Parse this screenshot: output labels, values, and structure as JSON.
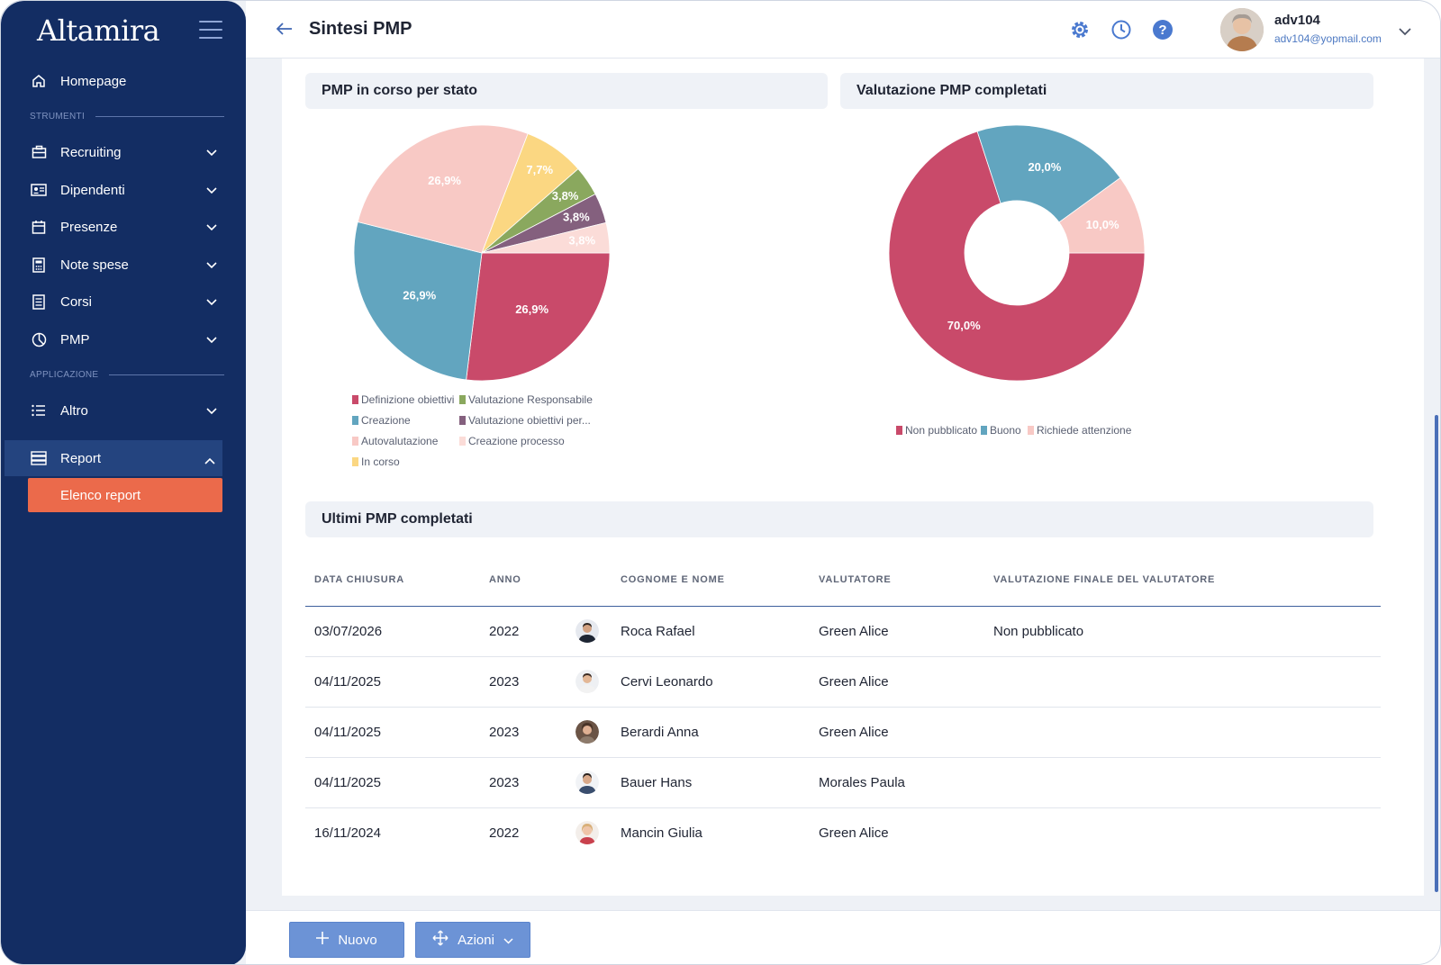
{
  "app": {
    "logo": "Altamira"
  },
  "header": {
    "title": "Sintesi PMP",
    "user_name": "adv104",
    "user_email": "adv104@yopmail.com"
  },
  "sidebar": {
    "homepage": "Homepage",
    "section_tools": "STRUMENTI",
    "section_app": "APPLICAZIONE",
    "items": [
      {
        "label": "Recruiting",
        "icon": "briefcase-icon"
      },
      {
        "label": "Dipendenti",
        "icon": "id-card-icon"
      },
      {
        "label": "Presenze",
        "icon": "calendar-icon"
      },
      {
        "label": "Note spese",
        "icon": "calculator-icon"
      },
      {
        "label": "Corsi",
        "icon": "document-icon"
      },
      {
        "label": "PMP",
        "icon": "pie-chart-icon"
      }
    ],
    "altro": "Altro",
    "report": "Report",
    "report_sub": "Elenco report"
  },
  "panels": {
    "pie_title": "PMP in corso per stato",
    "donut_title": "Valutazione PMP completati",
    "table_title": "Ultimi PMP completati"
  },
  "chart_data": [
    {
      "type": "pie",
      "title": "PMP in corso per stato",
      "labels": [
        "Definizione obiettivi",
        "Creazione",
        "Autovalutazione",
        "In corso",
        "Valutazione Responsabile",
        "Valutazione obiettivi per...",
        "Creazione processo"
      ],
      "values": [
        26.9,
        26.9,
        26.9,
        7.7,
        3.8,
        3.8,
        3.8
      ],
      "value_labels": [
        "26,9%",
        "26,9%",
        "26,9%",
        "7,7%",
        "3,8%",
        "3,8%",
        "3,8%"
      ],
      "colors": [
        "#c94a6a",
        "#62a5bf",
        "#f8c9c5",
        "#fbd782",
        "#8aa85e",
        "#84607e",
        "#fbdcd8"
      ],
      "legend_position": "bottom"
    },
    {
      "type": "pie",
      "title": "Valutazione PMP completati",
      "labels": [
        "Non pubblicato",
        "Buono",
        "Richiede attenzione"
      ],
      "values": [
        70.0,
        20.0,
        10.0
      ],
      "value_labels": [
        "70,0%",
        "20,0%",
        "10,0%"
      ],
      "colors": [
        "#c94a6a",
        "#62a5bf",
        "#f8c9c5"
      ],
      "legend_position": "bottom"
    }
  ],
  "table": {
    "headers": [
      "DATA CHIUSURA",
      "ANNO",
      "",
      "COGNOME E NOME",
      "VALUTATORE",
      "VALUTAZIONE FINALE DEL VALUTATORE"
    ],
    "rows": [
      {
        "date": "03/07/2026",
        "year": "2022",
        "name": "Roca Rafael",
        "evaluator": "Green Alice",
        "final": "Non pubblicato"
      },
      {
        "date": "04/11/2025",
        "year": "2023",
        "name": "Cervi Leonardo",
        "evaluator": "Green Alice",
        "final": ""
      },
      {
        "date": "04/11/2025",
        "year": "2023",
        "name": "Berardi Anna",
        "evaluator": "Green Alice",
        "final": ""
      },
      {
        "date": "04/11/2025",
        "year": "2023",
        "name": "Bauer Hans",
        "evaluator": "Morales Paula",
        "final": ""
      },
      {
        "date": "16/11/2024",
        "year": "2022",
        "name": "Mancin Giulia",
        "evaluator": "Green Alice",
        "final": ""
      }
    ]
  },
  "footer": {
    "new_label": "Nuovo",
    "actions_label": "Azioni"
  }
}
